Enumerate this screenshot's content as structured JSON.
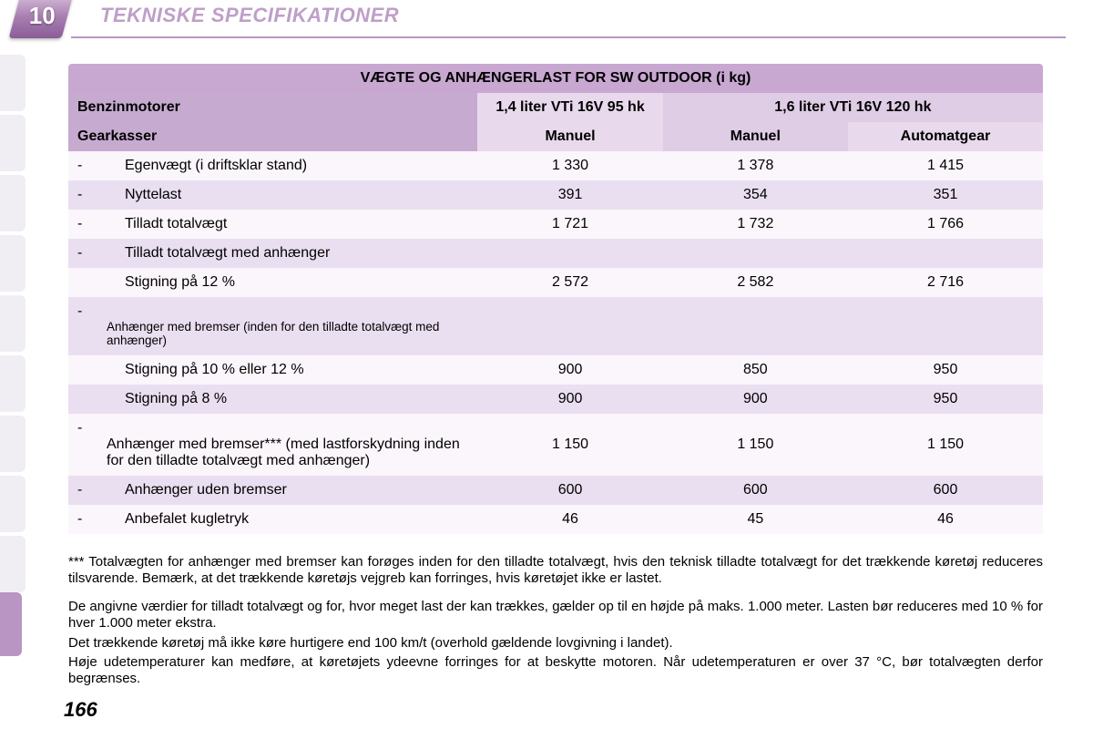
{
  "chapter_number": "10",
  "section_title": "TEKNISKE SPECIFIKATIONER",
  "page_number": "166",
  "table": {
    "title": "VÆGTE OG ANHÆNGERLAST FOR SW OUTDOOR (i kg)",
    "header_engines_label": "Benzinmotorer",
    "engine_1": "1,4 liter VTi 16V 95 hk",
    "engine_2": "1,6 liter VTi 16V 120 hk",
    "header_gearbox_label": "Gearkasser",
    "gearbox_1": "Manuel",
    "gearbox_2": "Manuel",
    "gearbox_3": "Automatgear",
    "rows": [
      {
        "label": "Egenvægt (i driftsklar stand)",
        "v1": "1 330",
        "v2": "1 378",
        "v3": "1 415"
      },
      {
        "label": "Nyttelast",
        "v1": "391",
        "v2": "354",
        "v3": "351"
      },
      {
        "label": "Tilladt totalvægt",
        "v1": "1 721",
        "v2": "1 732",
        "v3": "1 766"
      },
      {
        "label": "Tilladt totalvægt med anhænger",
        "v1": "",
        "v2": "",
        "v3": ""
      },
      {
        "label_indent": "Stigning på 12 %",
        "v1": "2 572",
        "v2": "2 582",
        "v3": "2 716"
      },
      {
        "label_small": "Anhænger med bremser (inden for den tilladte totalvægt med anhænger)",
        "v1": "",
        "v2": "",
        "v3": ""
      },
      {
        "label_indent": "Stigning på 10 % eller 12 %",
        "v1": "900",
        "v2": "850",
        "v3": "950"
      },
      {
        "label_indent": "Stigning på 8 %",
        "v1": "900",
        "v2": "900",
        "v3": "950"
      },
      {
        "label": "Anhænger med bremser*** (med lastforskydning inden for den tilladte totalvægt med anhænger)",
        "v1": "1 150",
        "v2": "1 150",
        "v3": "1 150"
      },
      {
        "label": "Anhænger uden bremser",
        "v1": "600",
        "v2": "600",
        "v3": "600"
      },
      {
        "label": "Anbefalet kugletryk",
        "v1": "46",
        "v2": "45",
        "v3": "46"
      }
    ]
  },
  "footnotes": {
    "p1": "*** Totalvægten for anhænger med bremser kan forøges inden for den tilladte totalvægt, hvis den teknisk tilladte totalvægt for det trækkende køretøj reduceres tilsvarende. Bemærk, at det trækkende køretøjs vejgreb kan forringes, hvis køretøjet ikke er lastet.",
    "p2": "De angivne værdier for tilladt totalvægt og for, hvor meget last der kan trækkes, gælder op til en højde på maks. 1.000 meter. Lasten bør reduceres med 10 % for hver 1.000 meter ekstra.",
    "p3": "Det trækkende køretøj må ikke køre hurtigere end 100 km/t (overhold gældende lovgivning i landet).",
    "p4": "Høje udetemperaturer kan medføre, at køretøjets ydeevne forringes for at beskytte motoren. Når udetemperaturen er over 37 °C, bør totalvægten derfor begrænses."
  },
  "colors": {
    "accent": "#b895c3",
    "header_dark": "#c6aad0",
    "header_light": "#e8d9ec",
    "row_odd": "#fbf6fb",
    "row_even": "#eadff0",
    "title_bg": "#c8a8d1"
  }
}
